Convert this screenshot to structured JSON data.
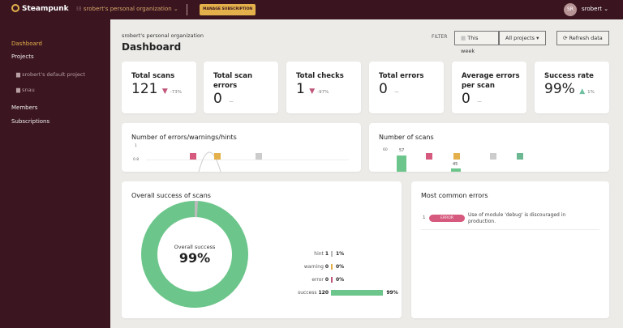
{
  "topbar": {
    "brand": "Steampunk",
    "org": "srobert's personal organization ⌄",
    "manage": "MANAGE SUBSCRIPTION",
    "avatar": "SR",
    "user": "srobert ⌄"
  },
  "sidebar": {
    "items": [
      "Dashboard",
      "Projects",
      "srobert's default project",
      "snau",
      "Members",
      "Subscriptions"
    ]
  },
  "header": {
    "breadcrumb": "srobert's personal organization",
    "title": "Dashboard",
    "filter": "FILTER",
    "period": "This week",
    "projects": "All projects ▾",
    "refresh": "Refresh data"
  },
  "stats": [
    {
      "title": "Total scans",
      "value": "121",
      "delta": "-73%",
      "trend": "down"
    },
    {
      "title": "Total scan errors",
      "value": "0",
      "delta": "—",
      "trend": "none"
    },
    {
      "title": "Total checks",
      "value": "1",
      "delta": "-97%",
      "trend": "down"
    },
    {
      "title": "Total errors",
      "value": "0",
      "delta": "—",
      "trend": "none"
    },
    {
      "title": "Average errors per scan",
      "value": "0",
      "delta": "—",
      "trend": "none"
    },
    {
      "title": "Success rate",
      "value": "99%",
      "delta": "1%",
      "trend": "up"
    }
  ],
  "charts": {
    "errors_title": "Number of errors/warnings/hints",
    "errors_ticks": [
      "1",
      "0.8"
    ],
    "scans_title": "Number of scans",
    "scans_tick": "60",
    "scans_values": [
      "57",
      "45"
    ]
  },
  "success": {
    "title": "Overall success of scans",
    "center_label": "Overall success",
    "center_value": "99%",
    "rows": [
      {
        "label": "hint",
        "count": "1",
        "pct": "1%",
        "color": "#bbbbbb",
        "frac": 0.01
      },
      {
        "label": "warning",
        "count": "0",
        "pct": "0%",
        "color": "#e3b04b",
        "frac": 0
      },
      {
        "label": "error",
        "count": "0",
        "pct": "0%",
        "color": "#c0587a",
        "frac": 0
      },
      {
        "label": "success",
        "count": "120",
        "pct": "99%",
        "color": "#6cc58a",
        "frac": 0.99
      }
    ]
  },
  "errors": {
    "title": "Most common errors",
    "items": [
      {
        "rank": "1",
        "badge": "ERROR",
        "text": "Use of module 'debug' is discouraged in production."
      }
    ]
  }
}
